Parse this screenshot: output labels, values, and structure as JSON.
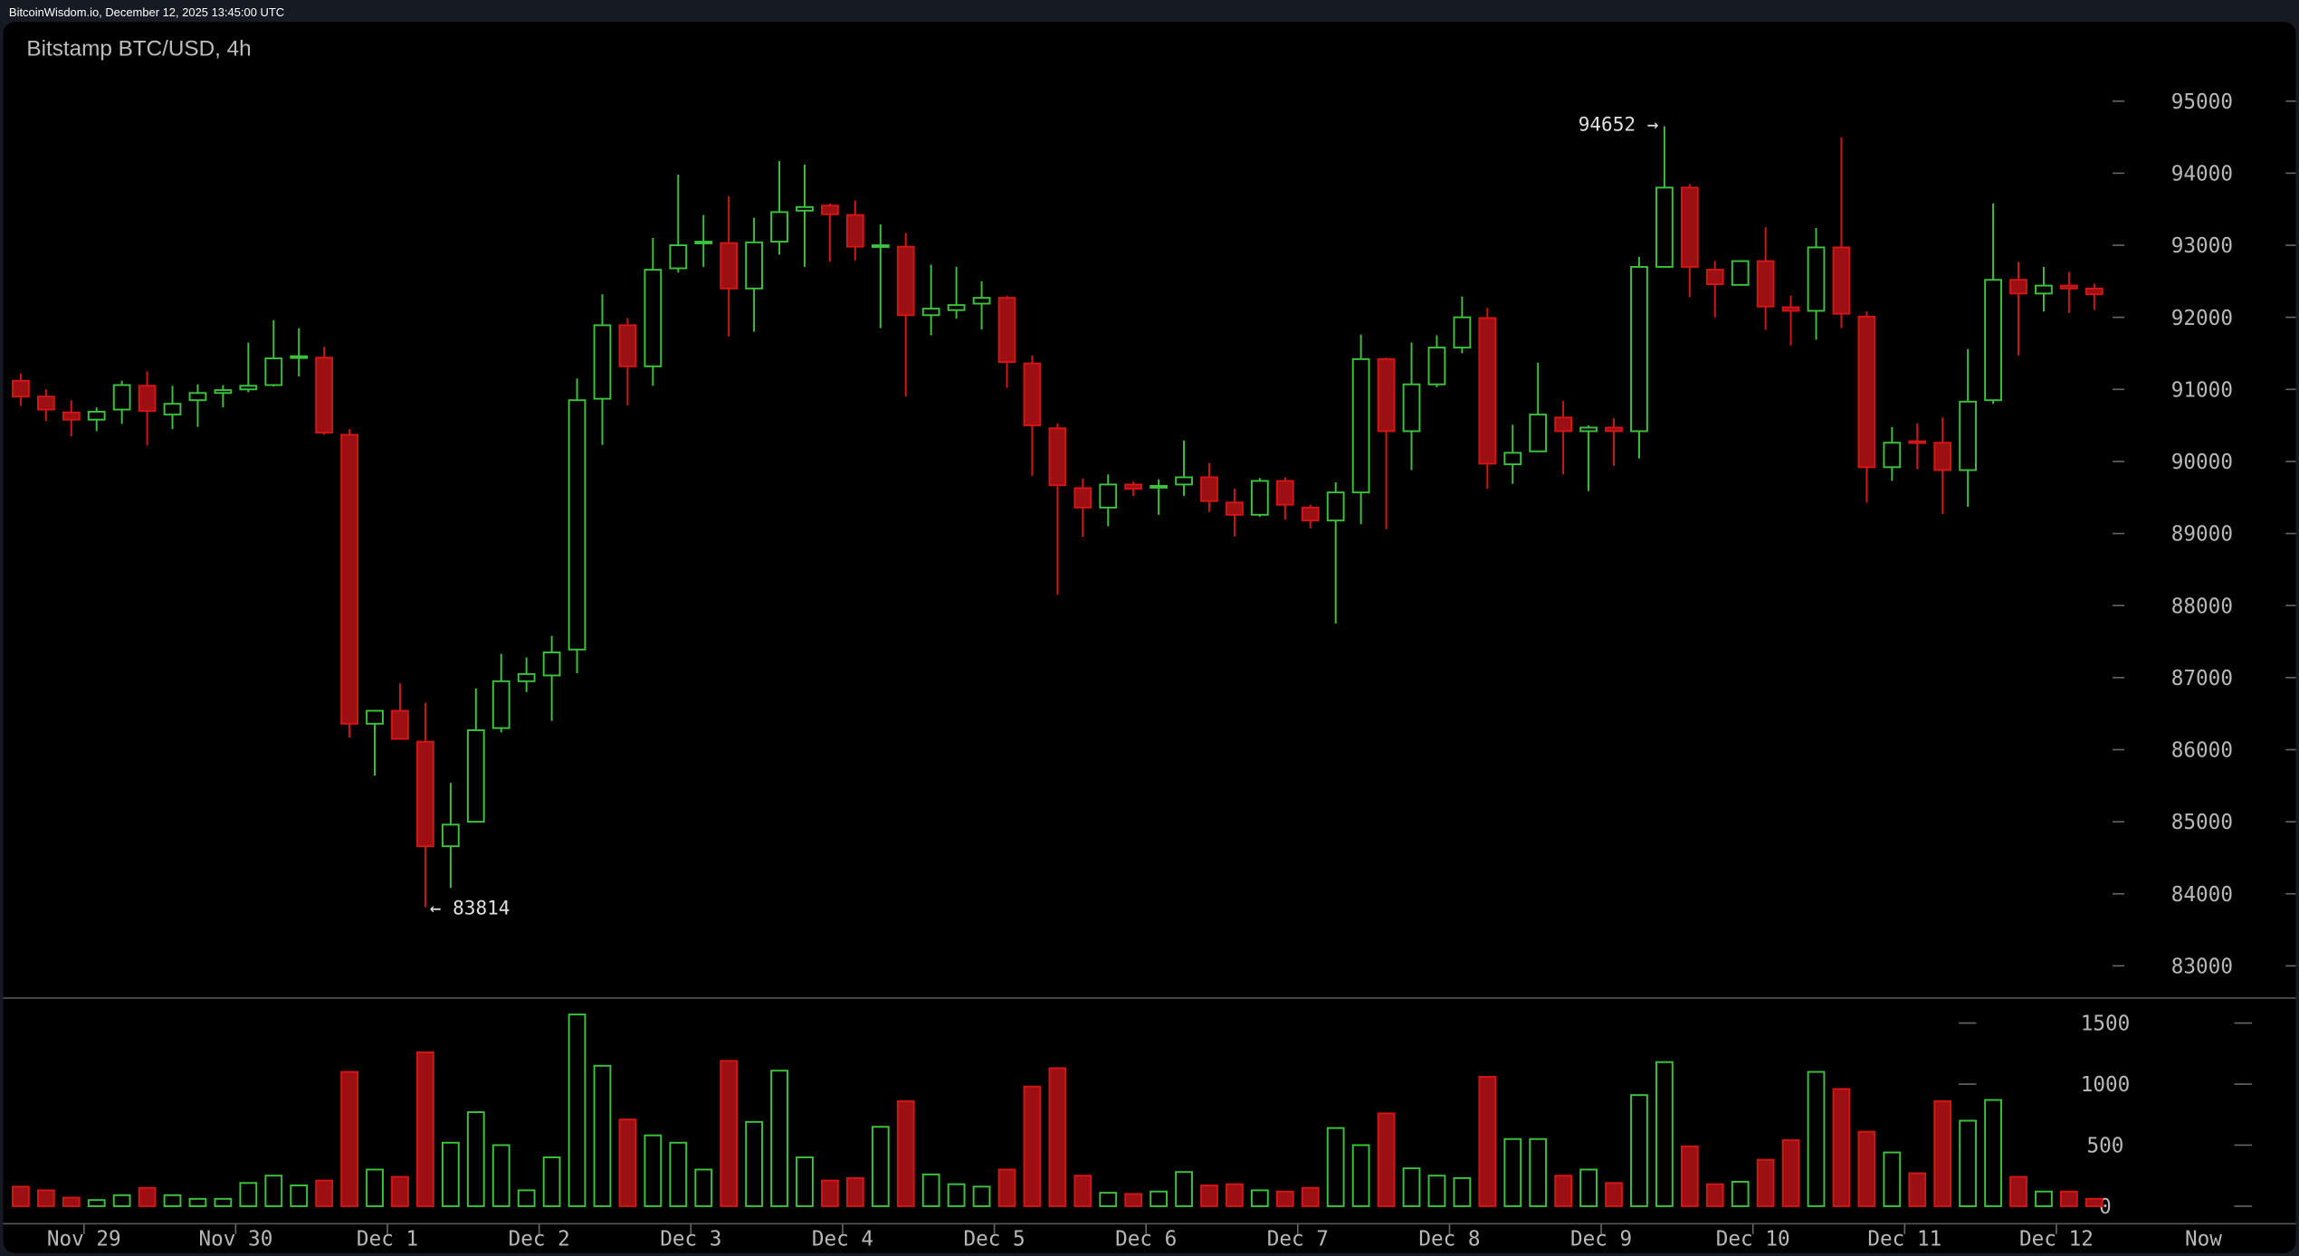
{
  "header": {
    "text": "BitcoinWisdom.io, December 12, 2025 13:45:00 UTC"
  },
  "chart_data": {
    "type": "candlestick",
    "title": "Bitstamp BTC/USD, 4h",
    "price_axis": {
      "ylim": [
        82400,
        96200
      ],
      "ticks": [
        83000,
        84000,
        85000,
        86000,
        87000,
        88000,
        89000,
        90000,
        91000,
        92000,
        93000,
        94000,
        95000
      ]
    },
    "volume_axis": {
      "ylim": [
        0,
        1650
      ],
      "ticks": [
        0,
        500,
        1000,
        1500
      ]
    },
    "x_labels": [
      {
        "label": "Nov 29",
        "index": 3
      },
      {
        "label": "Nov 30",
        "index": 9
      },
      {
        "label": "Dec 1",
        "index": 15
      },
      {
        "label": "Dec 2",
        "index": 21
      },
      {
        "label": "Dec 3",
        "index": 27
      },
      {
        "label": "Dec 4",
        "index": 33
      },
      {
        "label": "Dec 5",
        "index": 39
      },
      {
        "label": "Dec 6",
        "index": 45
      },
      {
        "label": "Dec 7",
        "index": 51
      },
      {
        "label": "Dec 8",
        "index": 57
      },
      {
        "label": "Dec 9",
        "index": 63
      },
      {
        "label": "Dec 10",
        "index": 69
      },
      {
        "label": "Dec 11",
        "index": 75
      },
      {
        "label": "Dec 12",
        "index": 81
      },
      {
        "label": "Now",
        "index": 86
      }
    ],
    "annotations": [
      {
        "text": "94652 →",
        "price": 94652,
        "index": 65,
        "side": "left"
      },
      {
        "text": "← 83814",
        "price": 83814,
        "index": 16,
        "side": "right"
      }
    ],
    "colors": {
      "up": "#3cc23c",
      "down_fill": "#9c0f12",
      "down_border": "#d41616",
      "axis_text": "#b8b8b8",
      "background": "#000000"
    },
    "candles": [
      [
        91120,
        91220,
        90770,
        90900,
        160
      ],
      [
        90900,
        91000,
        90560,
        90720,
        130
      ],
      [
        90680,
        90850,
        90350,
        90580,
        70
      ],
      [
        90580,
        90750,
        90420,
        90690,
        50
      ],
      [
        90720,
        91120,
        90520,
        91060,
        90
      ],
      [
        91050,
        91250,
        90220,
        90700,
        150
      ],
      [
        90650,
        91050,
        90450,
        90800,
        90
      ],
      [
        90850,
        91070,
        90480,
        90950,
        60
      ],
      [
        90950,
        91060,
        90750,
        90990,
        60
      ],
      [
        91000,
        91650,
        90960,
        91050,
        190
      ],
      [
        91060,
        91960,
        91040,
        91430,
        250
      ],
      [
        91440,
        91850,
        91180,
        91460,
        170
      ],
      [
        91440,
        91590,
        90370,
        90400,
        210
      ],
      [
        90370,
        90450,
        86170,
        86360,
        1100
      ],
      [
        86360,
        86540,
        85640,
        86540,
        300
      ],
      [
        86540,
        86920,
        86150,
        86150,
        240
      ],
      [
        86110,
        86650,
        83814,
        84660,
        1260
      ],
      [
        84660,
        85540,
        84080,
        84960,
        520
      ],
      [
        85000,
        86850,
        85000,
        86270,
        770
      ],
      [
        86300,
        87330,
        86240,
        86950,
        500
      ],
      [
        86950,
        87280,
        86800,
        87050,
        130
      ],
      [
        87030,
        87580,
        86400,
        87350,
        400
      ],
      [
        87390,
        91150,
        87060,
        90850,
        1570
      ],
      [
        90870,
        92320,
        90230,
        91890,
        1150
      ],
      [
        91890,
        91990,
        90780,
        91320,
        710
      ],
      [
        91320,
        93100,
        91050,
        92660,
        580
      ],
      [
        92680,
        93980,
        92620,
        93000,
        520
      ],
      [
        93030,
        93420,
        92700,
        93050,
        300
      ],
      [
        93030,
        93680,
        91730,
        92400,
        1190
      ],
      [
        92400,
        93380,
        91800,
        93040,
        690
      ],
      [
        93050,
        94170,
        92870,
        93460,
        1110
      ],
      [
        93480,
        94120,
        92700,
        93530,
        400
      ],
      [
        93550,
        93580,
        92770,
        93430,
        210
      ],
      [
        93420,
        93620,
        92790,
        92980,
        230
      ],
      [
        92980,
        93290,
        91850,
        93000,
        650
      ],
      [
        92980,
        93170,
        90900,
        92030,
        860
      ],
      [
        92030,
        92730,
        91750,
        92120,
        260
      ],
      [
        92100,
        92700,
        91980,
        92170,
        180
      ],
      [
        92190,
        92500,
        91830,
        92270,
        160
      ],
      [
        92270,
        92300,
        91020,
        91380,
        300
      ],
      [
        91360,
        91470,
        89800,
        90500,
        980
      ],
      [
        90460,
        90530,
        88150,
        89670,
        1130
      ],
      [
        89630,
        89760,
        88950,
        89360,
        250
      ],
      [
        89360,
        89820,
        89100,
        89680,
        110
      ],
      [
        89680,
        89720,
        89520,
        89620,
        100
      ],
      [
        89640,
        89750,
        89260,
        89660,
        120
      ],
      [
        89680,
        90290,
        89520,
        89780,
        280
      ],
      [
        89780,
        89980,
        89300,
        89450,
        170
      ],
      [
        89430,
        89620,
        88960,
        89260,
        180
      ],
      [
        89260,
        89770,
        89230,
        89730,
        130
      ],
      [
        89730,
        89780,
        89190,
        89400,
        120
      ],
      [
        89360,
        89400,
        89070,
        89180,
        150
      ],
      [
        89180,
        89710,
        87750,
        89570,
        640
      ],
      [
        89570,
        91760,
        89130,
        91420,
        500
      ],
      [
        91420,
        91440,
        89060,
        90420,
        760
      ],
      [
        90420,
        91650,
        89880,
        91070,
        310
      ],
      [
        91070,
        91750,
        91030,
        91580,
        250
      ],
      [
        91580,
        92290,
        91500,
        92000,
        230
      ],
      [
        91990,
        92130,
        89620,
        89970,
        1060
      ],
      [
        89960,
        90510,
        89690,
        90120,
        550
      ],
      [
        90140,
        91370,
        90140,
        90650,
        550
      ],
      [
        90610,
        90840,
        89820,
        90420,
        250
      ],
      [
        90420,
        90500,
        89590,
        90470,
        300
      ],
      [
        90470,
        90600,
        89940,
        90420,
        190
      ],
      [
        90420,
        92840,
        90040,
        92700,
        910
      ],
      [
        92700,
        94652,
        92730,
        93800,
        1180
      ],
      [
        93800,
        93850,
        92280,
        92700,
        490
      ],
      [
        92660,
        92780,
        92000,
        92460,
        180
      ],
      [
        92450,
        92780,
        92450,
        92780,
        200
      ],
      [
        92780,
        93250,
        91830,
        92150,
        380
      ],
      [
        92140,
        92300,
        91610,
        92090,
        540
      ],
      [
        92090,
        93240,
        91690,
        92970,
        1100
      ],
      [
        92970,
        94500,
        91850,
        92050,
        960
      ],
      [
        92010,
        92080,
        89430,
        89920,
        610
      ],
      [
        89920,
        90480,
        89730,
        90260,
        440
      ],
      [
        90280,
        90530,
        89890,
        90260,
        270
      ],
      [
        90260,
        90610,
        89270,
        89880,
        860
      ],
      [
        89880,
        91560,
        89370,
        90830,
        700
      ],
      [
        90850,
        93580,
        90800,
        92520,
        870
      ],
      [
        92520,
        92770,
        91470,
        92330,
        240
      ],
      [
        92330,
        92700,
        92080,
        92440,
        120
      ],
      [
        92440,
        92630,
        92060,
        92400,
        120
      ],
      [
        92400,
        92470,
        92100,
        92320,
        60
      ]
    ]
  }
}
